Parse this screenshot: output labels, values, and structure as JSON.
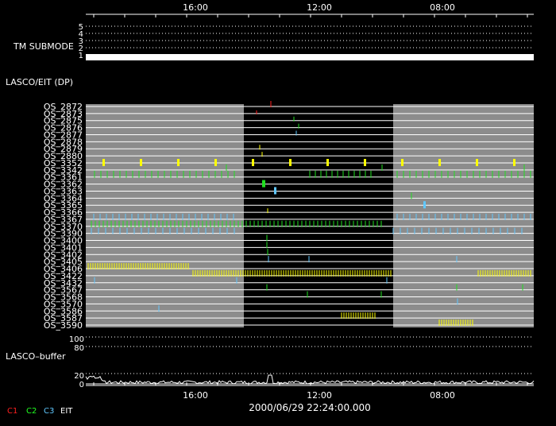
{
  "top_axis": {
    "ticks": [
      "16:00",
      "12:00",
      "08:00"
    ]
  },
  "bottom_axis": {
    "ticks": [
      "16:00",
      "12:00",
      "08:00"
    ]
  },
  "submode": {
    "label": "TM SUBMODE",
    "levels": [
      "5",
      "4",
      "3",
      "2",
      "1"
    ],
    "current_level": 1
  },
  "dp_label": "LASCO/EIT (DP)",
  "os_rows": [
    "OS_2872",
    "OS_2873",
    "OS_2875",
    "OS_2876",
    "OS_2877",
    "OS_2878",
    "OS_2879",
    "OS_2880",
    "OS_3352",
    "OS_3342",
    "OS_3361",
    "OS_3362",
    "OS_3363",
    "OS_3364",
    "OS_3365",
    "OS_3366",
    "OS_3367",
    "OS_3370",
    "OS_3390",
    "OS_3400",
    "OS_3401",
    "OS_3402",
    "OS_3405",
    "OS_3406",
    "OS_3422",
    "OS_3432",
    "OS_3567",
    "OS_3568",
    "OS_3570",
    "OS_3586",
    "OS_3587",
    "OS_3590"
  ],
  "buffer": {
    "label": "LASCO–buffer",
    "top_ticks": [
      "100",
      "80"
    ],
    "bottom_ticks": [
      "20",
      "0"
    ]
  },
  "footer": {
    "legend": [
      {
        "label": "C1",
        "color": "#ff2020"
      },
      {
        "label": "C2",
        "color": "#20ff20"
      },
      {
        "label": "C3",
        "color": "#60c8ff"
      },
      {
        "label": "EIT",
        "color": "#ffffff"
      }
    ],
    "timestamp": "2000/06/29 22:24:00.000"
  },
  "colors": {
    "background": "#000000",
    "shade": "#8c8c8c",
    "grid": "#ffffff",
    "yellow": "#ffff00",
    "green": "#20e020",
    "cyan": "#60c8ff",
    "red": "#ff2020"
  }
}
